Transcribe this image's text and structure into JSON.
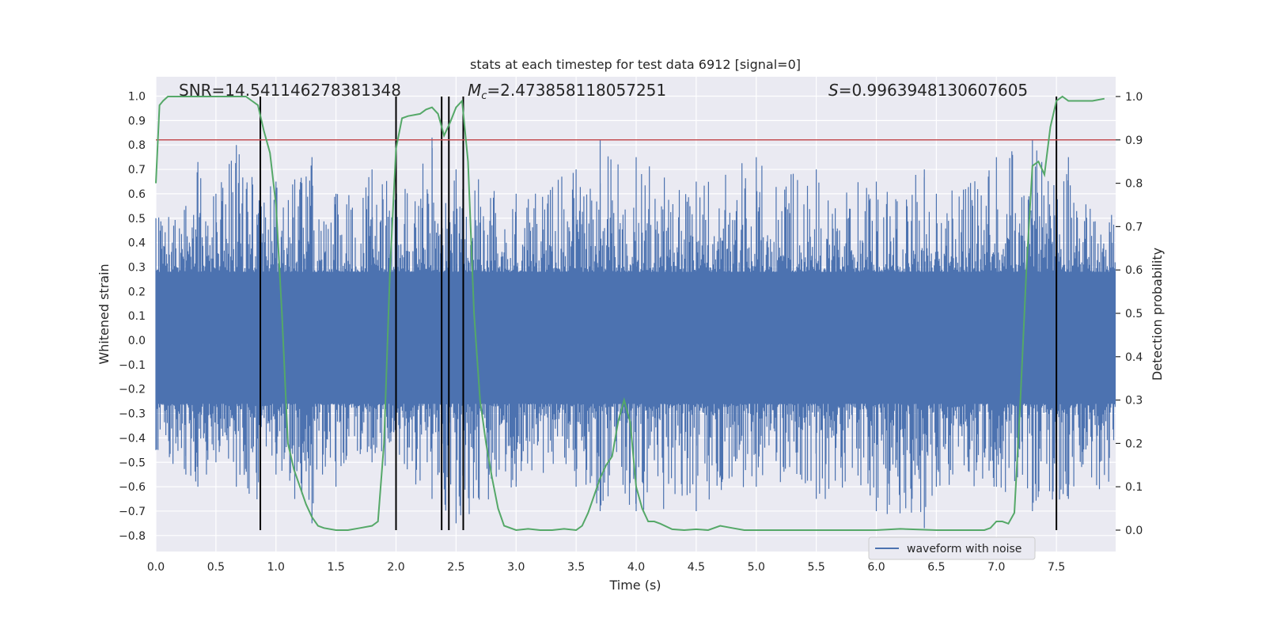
{
  "chart_data": {
    "type": "line",
    "title": "stats at each timestep for test data 6912 [signal=0]",
    "xlabel": "Time (s)",
    "ylabel": "Whitened strain",
    "ylabel_right": "Detection probability",
    "xlim": [
      0,
      8
    ],
    "ylim": [
      -0.85,
      1.07
    ],
    "ylim_right": [
      -0.03,
      1.09
    ],
    "x_ticks": [
      "0.0",
      "0.5",
      "1.0",
      "1.5",
      "2.0",
      "2.5",
      "3.0",
      "3.5",
      "4.0",
      "4.5",
      "5.0",
      "5.5",
      "6.0",
      "6.5",
      "7.0",
      "7.5"
    ],
    "y_ticks": [
      "-0.8",
      "-0.7",
      "-0.6",
      "-0.5",
      "-0.4",
      "-0.3",
      "-0.2",
      "-0.1",
      "0.0",
      "0.1",
      "0.2",
      "0.3",
      "0.4",
      "0.5",
      "0.6",
      "0.7",
      "0.8",
      "0.9",
      "1.0"
    ],
    "y_ticks_right": [
      "0.0",
      "0.1",
      "0.2",
      "0.3",
      "0.4",
      "0.5",
      "0.6",
      "0.7",
      "0.8",
      "0.9",
      "1.0"
    ],
    "annotations": {
      "snr": "SNR=14.541146278381348",
      "mc_symbol": "M",
      "mc_sub": "c",
      "mc_value": "=2.473858118057251",
      "s_symbol": "S",
      "s_value": "=0.9963948130607605"
    },
    "legend": {
      "label": "waveform with noise",
      "placement": "lower-right"
    },
    "grid": true,
    "threshold": 0.9,
    "event_markers": [
      0.87,
      2.0,
      2.38,
      2.44,
      2.56,
      7.5
    ],
    "series": [
      {
        "name": "waveform with noise",
        "color": "#4c72b0",
        "envelope": [
          [
            0.0,
            0.5,
            -0.45
          ],
          [
            0.25,
            0.55,
            -0.55
          ],
          [
            0.35,
            0.73,
            -0.6
          ],
          [
            0.5,
            0.6,
            -0.5
          ],
          [
            0.67,
            0.8,
            -0.6
          ],
          [
            0.87,
            0.6,
            -0.75
          ],
          [
            1.0,
            0.65,
            -0.55
          ],
          [
            1.3,
            0.75,
            -0.75
          ],
          [
            1.5,
            0.6,
            -0.6
          ],
          [
            1.8,
            0.7,
            -0.5
          ],
          [
            2.0,
            0.65,
            -0.55
          ],
          [
            2.3,
            0.83,
            -0.65
          ],
          [
            2.5,
            0.7,
            -0.75
          ],
          [
            3.0,
            0.6,
            -0.6
          ],
          [
            3.5,
            0.7,
            -0.6
          ],
          [
            3.7,
            0.82,
            -0.7
          ],
          [
            4.0,
            0.75,
            -0.7
          ],
          [
            4.5,
            0.65,
            -0.7
          ],
          [
            5.0,
            0.75,
            -0.6
          ],
          [
            5.5,
            0.7,
            -0.65
          ],
          [
            6.0,
            0.65,
            -0.7
          ],
          [
            6.4,
            0.7,
            -0.77
          ],
          [
            6.5,
            0.6,
            -0.6
          ],
          [
            7.0,
            0.75,
            -0.6
          ],
          [
            7.3,
            0.82,
            -0.7
          ],
          [
            7.5,
            0.75,
            -0.7
          ],
          [
            7.6,
            0.75,
            -0.65
          ],
          [
            8.0,
            0.5,
            -0.6
          ]
        ]
      },
      {
        "name": "",
        "color": "#55a868",
        "axis": "right",
        "x": [
          0.0,
          0.03,
          0.06,
          0.1,
          0.2,
          0.3,
          0.4,
          0.5,
          0.6,
          0.7,
          0.75,
          0.8,
          0.85,
          0.9,
          0.95,
          1.0,
          1.05,
          1.1,
          1.15,
          1.2,
          1.25,
          1.3,
          1.35,
          1.4,
          1.5,
          1.6,
          1.7,
          1.8,
          1.85,
          1.9,
          1.95,
          2.0,
          2.05,
          2.1,
          2.2,
          2.25,
          2.3,
          2.35,
          2.4,
          2.45,
          2.5,
          2.55,
          2.6,
          2.65,
          2.7,
          2.75,
          2.8,
          2.85,
          2.9,
          3.0,
          3.1,
          3.2,
          3.3,
          3.4,
          3.5,
          3.55,
          3.6,
          3.65,
          3.7,
          3.75,
          3.8,
          3.85,
          3.9,
          3.95,
          4.0,
          4.05,
          4.1,
          4.15,
          4.2,
          4.3,
          4.4,
          4.5,
          4.6,
          4.7,
          4.8,
          4.9,
          5.0,
          5.2,
          5.5,
          6.0,
          6.2,
          6.5,
          6.8,
          6.9,
          6.95,
          7.0,
          7.05,
          7.1,
          7.15,
          7.2,
          7.25,
          7.3,
          7.35,
          7.4,
          7.45,
          7.5,
          7.55,
          7.6,
          7.65,
          7.7,
          7.8,
          7.9
        ],
        "values": [
          0.8,
          0.98,
          0.99,
          1.0,
          1.0,
          1.0,
          1.0,
          1.0,
          1.0,
          1.0,
          1.0,
          0.99,
          0.98,
          0.92,
          0.87,
          0.75,
          0.5,
          0.2,
          0.14,
          0.1,
          0.06,
          0.03,
          0.01,
          0.005,
          0.0,
          0.0,
          0.005,
          0.01,
          0.02,
          0.2,
          0.6,
          0.88,
          0.95,
          0.955,
          0.96,
          0.97,
          0.975,
          0.96,
          0.91,
          0.94,
          0.975,
          0.99,
          0.85,
          0.5,
          0.3,
          0.2,
          0.12,
          0.05,
          0.01,
          0.0,
          0.003,
          0.0,
          0.0,
          0.003,
          0.0,
          0.01,
          0.04,
          0.08,
          0.12,
          0.15,
          0.17,
          0.25,
          0.3,
          0.25,
          0.1,
          0.05,
          0.02,
          0.02,
          0.015,
          0.002,
          0.0,
          0.002,
          0.0,
          0.01,
          0.005,
          0.0,
          0.0,
          0.0,
          0.0,
          0.0,
          0.003,
          0.0,
          0.0,
          0.0,
          0.005,
          0.02,
          0.02,
          0.015,
          0.04,
          0.3,
          0.6,
          0.84,
          0.85,
          0.82,
          0.93,
          0.99,
          1.0,
          0.99,
          0.99,
          0.99,
          0.99,
          0.995
        ]
      }
    ],
    "threshold_color": "#c44e52"
  }
}
